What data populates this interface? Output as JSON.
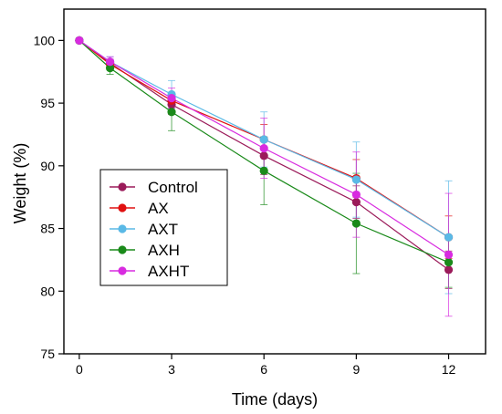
{
  "chart_data": {
    "type": "line",
    "xlabel": "Time (days)",
    "ylabel": "Weight (%)",
    "xlim": [
      -0.5,
      13.2
    ],
    "ylim": [
      75,
      102.5
    ],
    "xticks": [
      0,
      3,
      6,
      9,
      12
    ],
    "yticks": [
      75,
      80,
      85,
      90,
      95,
      100
    ],
    "grid": false,
    "legend_position": "left, lower-middle",
    "x": [
      0,
      1,
      3,
      6,
      9,
      12
    ],
    "series": [
      {
        "name": "Control",
        "color": "#9b1b5a",
        "values": [
          100,
          98.2,
          94.9,
          90.8,
          87.1,
          81.7
        ],
        "errors": [
          0,
          0.3,
          0.8,
          1.5,
          1.3,
          1.5
        ]
      },
      {
        "name": "AX",
        "color": "#e01010",
        "values": [
          100,
          98.1,
          95.2,
          92.1,
          89.0,
          84.3
        ],
        "errors": [
          0,
          0.3,
          0.6,
          1.2,
          1.5,
          1.7
        ]
      },
      {
        "name": "AXT",
        "color": "#5ab9e6",
        "values": [
          100,
          98.3,
          95.7,
          92.1,
          88.9,
          84.3
        ],
        "errors": [
          0,
          0.4,
          1.1,
          2.2,
          3.0,
          4.5
        ]
      },
      {
        "name": "AXH",
        "color": "#1a8a1a",
        "values": [
          100,
          97.8,
          94.3,
          89.6,
          85.4,
          82.3
        ],
        "errors": [
          0,
          0.5,
          1.5,
          2.7,
          4.0,
          2.0
        ]
      },
      {
        "name": "AXHT",
        "color": "#d82be0",
        "values": [
          100,
          98.3,
          95.4,
          91.4,
          87.7,
          82.9
        ],
        "errors": [
          0,
          0.4,
          0.8,
          2.4,
          3.4,
          4.9
        ]
      }
    ]
  }
}
